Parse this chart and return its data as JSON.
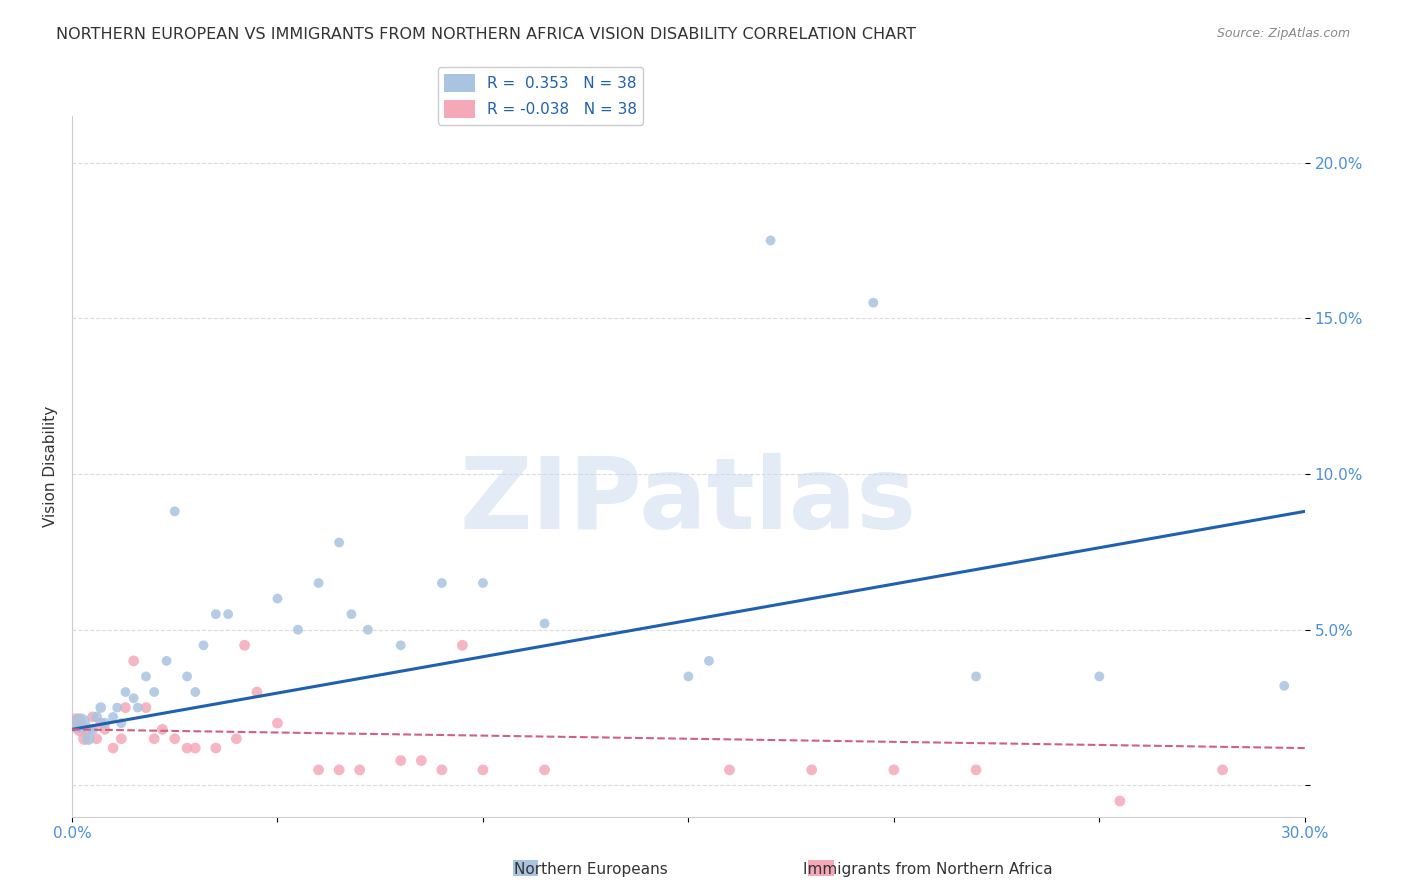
{
  "title": "NORTHERN EUROPEAN VS IMMIGRANTS FROM NORTHERN AFRICA VISION DISABILITY CORRELATION CHART",
  "source": "Source: ZipAtlas.com",
  "ylabel": "Vision Disability",
  "xlabel": "",
  "xlim": [
    0.0,
    0.3
  ],
  "ylim": [
    -0.01,
    0.215
  ],
  "xticks": [
    0.0,
    0.05,
    0.1,
    0.15,
    0.2,
    0.25,
    0.3
  ],
  "xtick_labels": [
    "0.0%",
    "",
    "",
    "",
    "",
    "",
    "30.0%"
  ],
  "yticks": [
    0.0,
    0.05,
    0.1,
    0.15,
    0.2
  ],
  "ytick_labels": [
    "",
    "5.0%",
    "10.0%",
    "15.0%",
    "20.0%"
  ],
  "legend_entries": [
    {
      "label": "R =  0.353   N = 38",
      "color": "#a8c4e0"
    },
    {
      "label": "R = -0.038   N = 38",
      "color": "#f4a8b8"
    }
  ],
  "blue_r": 0.353,
  "blue_n": 38,
  "pink_r": -0.038,
  "pink_n": 38,
  "blue_scatter_x": [
    0.002,
    0.004,
    0.005,
    0.006,
    0.007,
    0.008,
    0.01,
    0.011,
    0.012,
    0.013,
    0.015,
    0.016,
    0.018,
    0.02,
    0.023,
    0.025,
    0.028,
    0.03,
    0.032,
    0.035,
    0.038,
    0.05,
    0.055,
    0.06,
    0.065,
    0.068,
    0.072,
    0.08,
    0.09,
    0.1,
    0.115,
    0.15,
    0.155,
    0.17,
    0.195,
    0.22,
    0.25,
    0.295
  ],
  "blue_scatter_y": [
    0.02,
    0.015,
    0.018,
    0.022,
    0.025,
    0.02,
    0.022,
    0.025,
    0.02,
    0.03,
    0.028,
    0.025,
    0.035,
    0.03,
    0.04,
    0.088,
    0.035,
    0.03,
    0.045,
    0.055,
    0.055,
    0.06,
    0.05,
    0.065,
    0.078,
    0.055,
    0.05,
    0.045,
    0.065,
    0.065,
    0.052,
    0.035,
    0.04,
    0.175,
    0.155,
    0.035,
    0.035,
    0.032
  ],
  "blue_scatter_size": [
    200,
    80,
    60,
    60,
    60,
    60,
    50,
    50,
    50,
    50,
    50,
    50,
    50,
    50,
    50,
    50,
    50,
    50,
    50,
    50,
    50,
    50,
    50,
    50,
    50,
    50,
    50,
    50,
    50,
    50,
    50,
    50,
    50,
    50,
    50,
    50,
    50,
    50
  ],
  "pink_scatter_x": [
    0.001,
    0.002,
    0.003,
    0.004,
    0.005,
    0.006,
    0.007,
    0.008,
    0.01,
    0.012,
    0.013,
    0.015,
    0.018,
    0.02,
    0.022,
    0.025,
    0.028,
    0.03,
    0.035,
    0.04,
    0.042,
    0.045,
    0.05,
    0.06,
    0.065,
    0.07,
    0.08,
    0.085,
    0.09,
    0.095,
    0.1,
    0.115,
    0.16,
    0.18,
    0.2,
    0.22,
    0.255,
    0.28
  ],
  "pink_scatter_y": [
    0.02,
    0.018,
    0.015,
    0.018,
    0.022,
    0.015,
    0.02,
    0.018,
    0.012,
    0.015,
    0.025,
    0.04,
    0.025,
    0.015,
    0.018,
    0.015,
    0.012,
    0.012,
    0.012,
    0.015,
    0.045,
    0.03,
    0.02,
    0.005,
    0.005,
    0.005,
    0.008,
    0.008,
    0.005,
    0.045,
    0.005,
    0.005,
    0.005,
    0.005,
    0.005,
    0.005,
    -0.005,
    0.005
  ],
  "pink_scatter_size": [
    200,
    100,
    80,
    60,
    60,
    60,
    60,
    60,
    60,
    60,
    60,
    60,
    60,
    60,
    60,
    60,
    60,
    60,
    60,
    60,
    60,
    60,
    60,
    60,
    60,
    60,
    60,
    60,
    60,
    60,
    60,
    60,
    60,
    60,
    60,
    60,
    60,
    60
  ],
  "blue_line_x": [
    0.0,
    0.3
  ],
  "blue_line_y": [
    0.018,
    0.088
  ],
  "pink_line_x": [
    0.0,
    0.3
  ],
  "pink_line_y": [
    0.018,
    0.012
  ],
  "watermark": "ZIPatlas",
  "background_color": "#ffffff",
  "scatter_blue_color": "#a8c4e0",
  "scatter_pink_color": "#f4a8b8",
  "line_blue_color": "#2060b0",
  "line_pink_color": "#d06080",
  "grid_color": "#cccccc",
  "title_color": "#333333",
  "axis_color": "#4a90d9",
  "source_color": "#888888"
}
